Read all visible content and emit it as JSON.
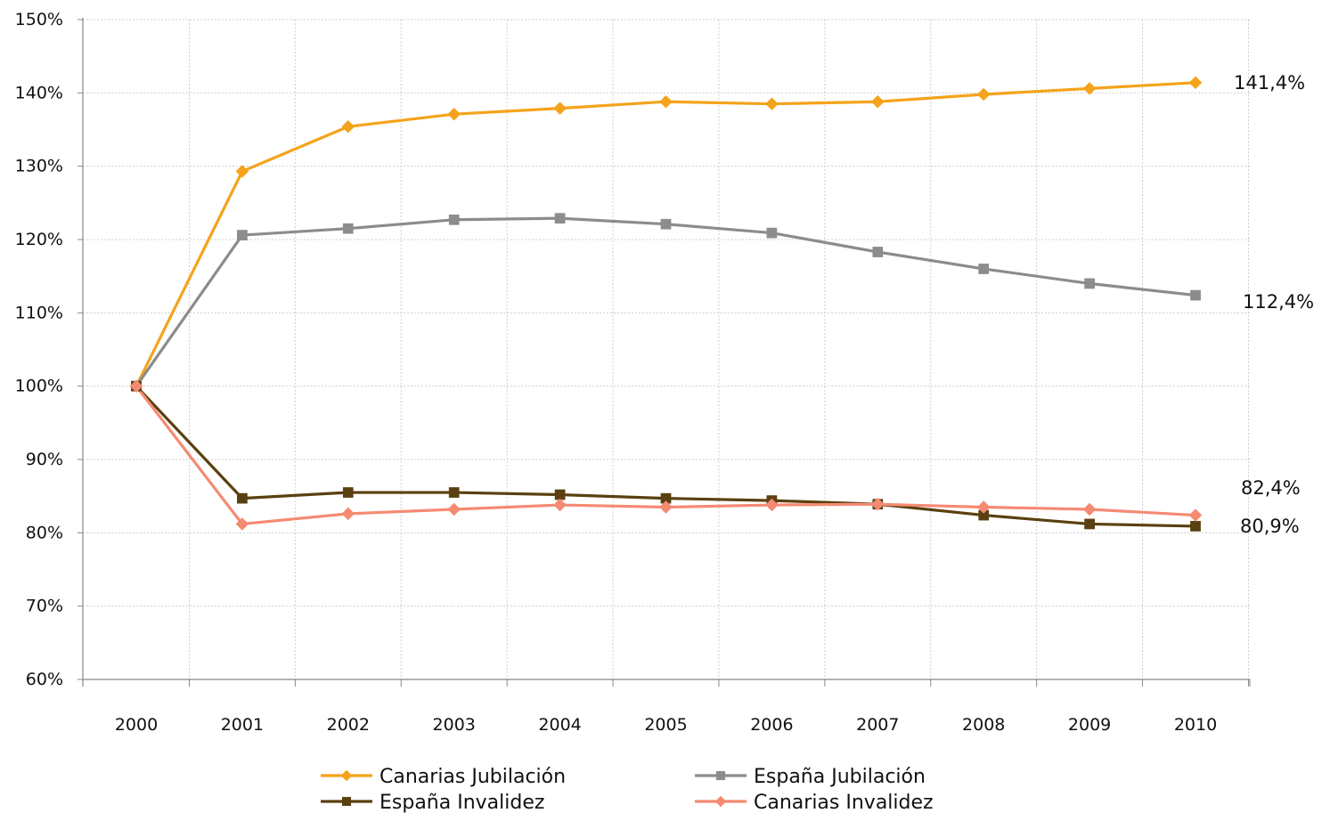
{
  "chart_data": {
    "type": "line",
    "title": "",
    "xlabel": "",
    "ylabel": "",
    "x": [
      "2000",
      "2001",
      "2002",
      "2003",
      "2004",
      "2005",
      "2006",
      "2007",
      "2008",
      "2009",
      "2010"
    ],
    "y_ticks": [
      "60%",
      "70%",
      "80%",
      "90%",
      "100%",
      "110%",
      "120%",
      "130%",
      "140%",
      "150%"
    ],
    "ylim": [
      60,
      150
    ],
    "grid": true,
    "legend_position": "bottom",
    "series": [
      {
        "name": "Canarias Jubilación",
        "color": "#f5a31a",
        "marker": "diamond",
        "values": [
          100,
          129.3,
          135.4,
          137.1,
          137.9,
          138.8,
          138.5,
          138.8,
          139.8,
          140.6,
          141.4
        ],
        "end_label": "141,4%"
      },
      {
        "name": "España Jubilación",
        "color": "#8c8c8c",
        "marker": "square",
        "values": [
          100,
          120.6,
          121.5,
          122.7,
          122.9,
          122.1,
          120.9,
          118.3,
          116.0,
          114.0,
          112.4
        ],
        "end_label": "112,4%"
      },
      {
        "name": "España Invalidez",
        "color": "#5a4010",
        "marker": "square",
        "values": [
          100,
          84.7,
          85.5,
          85.5,
          85.2,
          84.7,
          84.4,
          83.9,
          82.4,
          81.2,
          80.9
        ],
        "end_label": "80,9%"
      },
      {
        "name": "Canarias Invalidez",
        "color": "#f58a72",
        "marker": "diamond",
        "values": [
          100,
          81.2,
          82.6,
          83.2,
          83.8,
          83.5,
          83.8,
          83.9,
          83.5,
          83.2,
          82.4
        ],
        "end_label": "82,4%"
      }
    ]
  }
}
